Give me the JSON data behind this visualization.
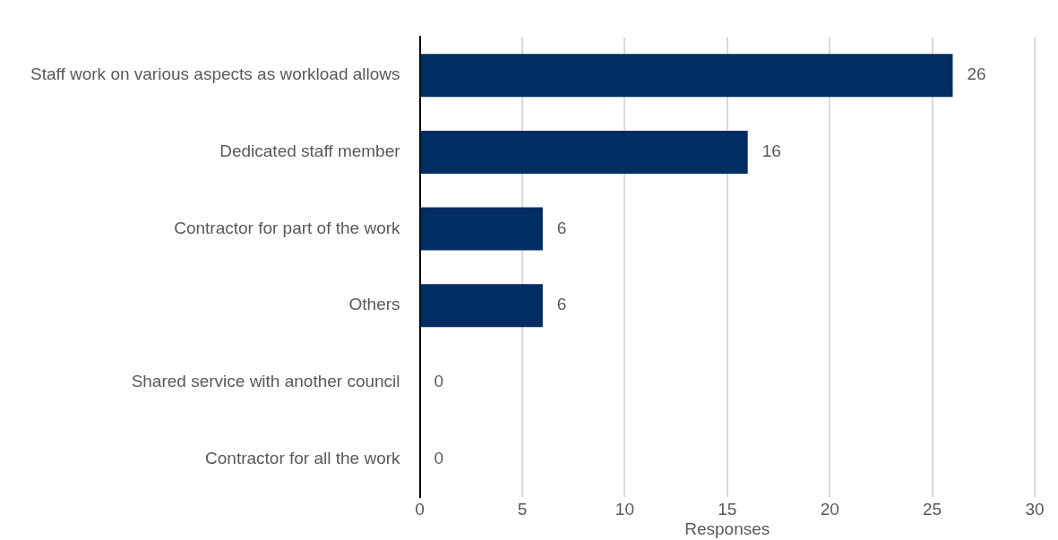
{
  "chart_data": {
    "type": "bar",
    "orientation": "horizontal",
    "xlabel": "Responses",
    "categories": [
      "Staff work on various aspects as workload allows",
      "Dedicated staff member",
      "Contractor for part of the work",
      "Others",
      "Shared service with another council",
      "Contractor for all the work"
    ],
    "values": [
      26,
      16,
      6,
      6,
      0,
      0
    ],
    "color": "#002d62",
    "xlim": [
      0,
      30
    ],
    "xticks": [
      0,
      5,
      10,
      15,
      20,
      25,
      30
    ],
    "grid": "x",
    "data_labels": true,
    "legend": false
  }
}
